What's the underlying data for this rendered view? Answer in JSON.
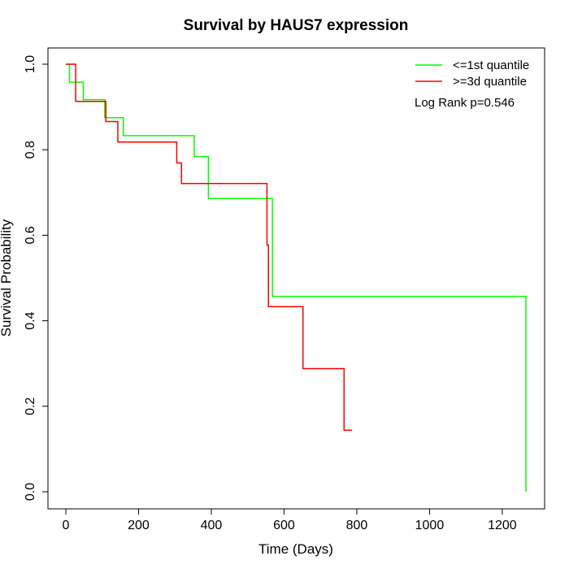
{
  "chart_data": {
    "type": "line",
    "step": true,
    "title": "Survival by HAUS7 expression",
    "xlabel": "Time (Days)",
    "ylabel": "Survival Probability",
    "xlim": [
      0,
      1300
    ],
    "ylim": [
      0,
      1.0
    ],
    "x_ticks": [
      0,
      200,
      400,
      600,
      800,
      1000,
      1200
    ],
    "y_ticks": [
      0.0,
      0.2,
      0.4,
      0.6,
      0.8,
      1.0
    ],
    "x_tick_labels": [
      "0",
      "200",
      "400",
      "600",
      "800",
      "1000",
      "1200"
    ],
    "y_tick_labels": [
      "0.0",
      "0.2",
      "0.4",
      "0.6",
      "0.8",
      "1.0"
    ],
    "grid": false,
    "legend_position": "top-right",
    "annotation": "Log Rank p=0.546",
    "series": [
      {
        "name": "<=1st quantile",
        "color": "#00ff00",
        "x": [
          0,
          10,
          48,
          107,
          158,
          353,
          392,
          568,
          1265,
          1265
        ],
        "y": [
          1.0,
          0.958,
          0.917,
          0.875,
          0.833,
          0.784,
          0.686,
          0.457,
          0.457,
          0.0
        ]
      },
      {
        "name": ">=3d quantile",
        "color": "#ff0000",
        "x": [
          0,
          27,
          110,
          143,
          305,
          318,
          553,
          557,
          652,
          765,
          787
        ],
        "y": [
          1.0,
          0.913,
          0.866,
          0.818,
          0.769,
          0.721,
          0.577,
          0.433,
          0.288,
          0.144,
          0.144
        ]
      }
    ]
  }
}
